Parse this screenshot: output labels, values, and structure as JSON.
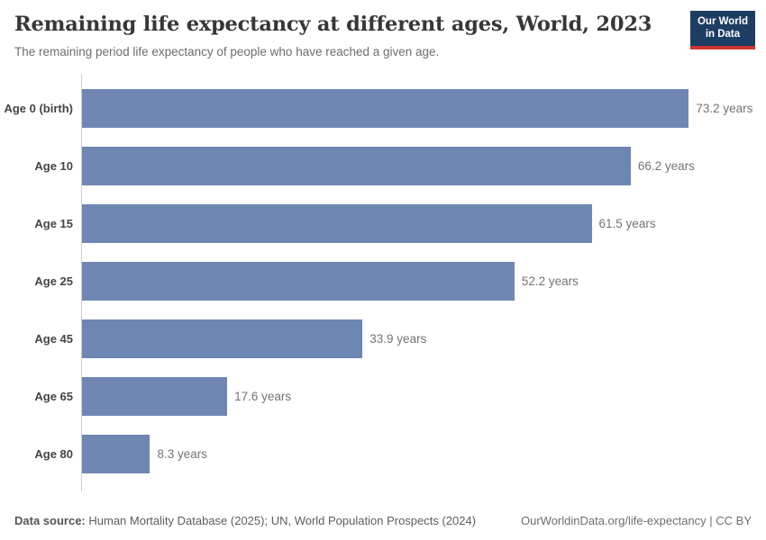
{
  "header": {
    "title": "Remaining life expectancy at different ages, World, 2023",
    "subtitle": "The remaining period life expectancy of people who have reached a given age.",
    "logo": {
      "line1": "Our World",
      "line2": "in Data"
    }
  },
  "chart_data": {
    "type": "bar",
    "orientation": "horizontal",
    "title": "Remaining life expectancy at different ages, World, 2023",
    "subtitle": "The remaining period life expectancy of people who have reached a given age.",
    "categories": [
      "Age 0 (birth)",
      "Age 10",
      "Age 15",
      "Age 25",
      "Age 45",
      "Age 65",
      "Age 80"
    ],
    "values": [
      73.2,
      66.2,
      61.5,
      52.2,
      33.9,
      17.6,
      8.3
    ],
    "value_labels": [
      "73.2 years",
      "66.2 years",
      "61.5 years",
      "52.2 years",
      "33.9 years",
      "17.6 years",
      "8.3 years"
    ],
    "unit": "years",
    "xlabel": "",
    "ylabel": "",
    "xlim": [
      0,
      82.5
    ],
    "grid": false,
    "legend": "none"
  },
  "footer": {
    "source_label": "Data source:",
    "source_text": "Human Mortality Database (2025); UN, World Population Prospects (2024)",
    "link_text": "OurWorldinData.org/life-expectancy | CC BY"
  },
  "colors": {
    "bar": "#6e87b2",
    "logo_bg": "#1d3d63",
    "logo_accent": "#cf3530",
    "axis_line": "#cfcfcf"
  }
}
